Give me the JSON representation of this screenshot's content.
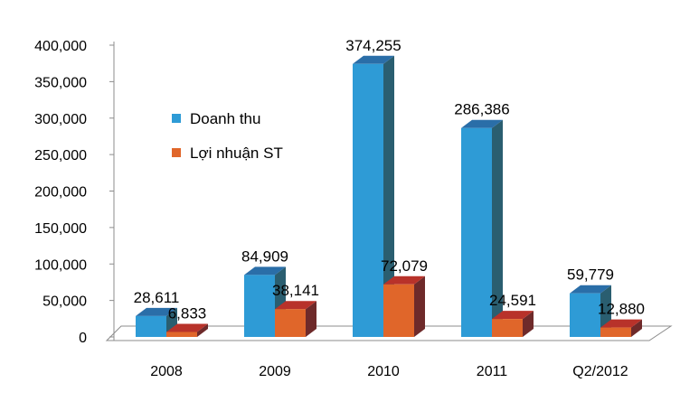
{
  "chart_data": {
    "type": "bar",
    "categories": [
      "2008",
      "2009",
      "2010",
      "2011",
      "Q2/2012"
    ],
    "series": [
      {
        "name": "Doanh thu",
        "values": [
          28611,
          84909,
          374255,
          286386,
          59779
        ],
        "labels": [
          "28,611",
          "84,909",
          "374,255",
          "286,386",
          "59,779"
        ]
      },
      {
        "name": "Lợi nhuận ST",
        "values": [
          6833,
          38141,
          72079,
          24591,
          12880
        ],
        "labels": [
          "6,833",
          "38,141",
          "72,079",
          "24,591",
          "12,880"
        ]
      }
    ],
    "yticks": [
      "0",
      "50,000",
      "100,000",
      "150,000",
      "200,000",
      "250,000",
      "300,000",
      "350,000",
      "400,000"
    ],
    "ylim": [
      0,
      400000
    ],
    "grid": false,
    "legend_position": "upper-left",
    "three_d": true
  },
  "colors": {
    "series_1": {
      "front": "#2E9BD6",
      "side": "#2A5E70",
      "top": "#2A6EA8"
    },
    "series_2": {
      "front": "#E0662A",
      "side": "#6E2A2A",
      "top": "#B8322A"
    },
    "floor": "#ffffff",
    "floor_stroke": "#8c8c8c",
    "axis": "#8c8c8c"
  }
}
